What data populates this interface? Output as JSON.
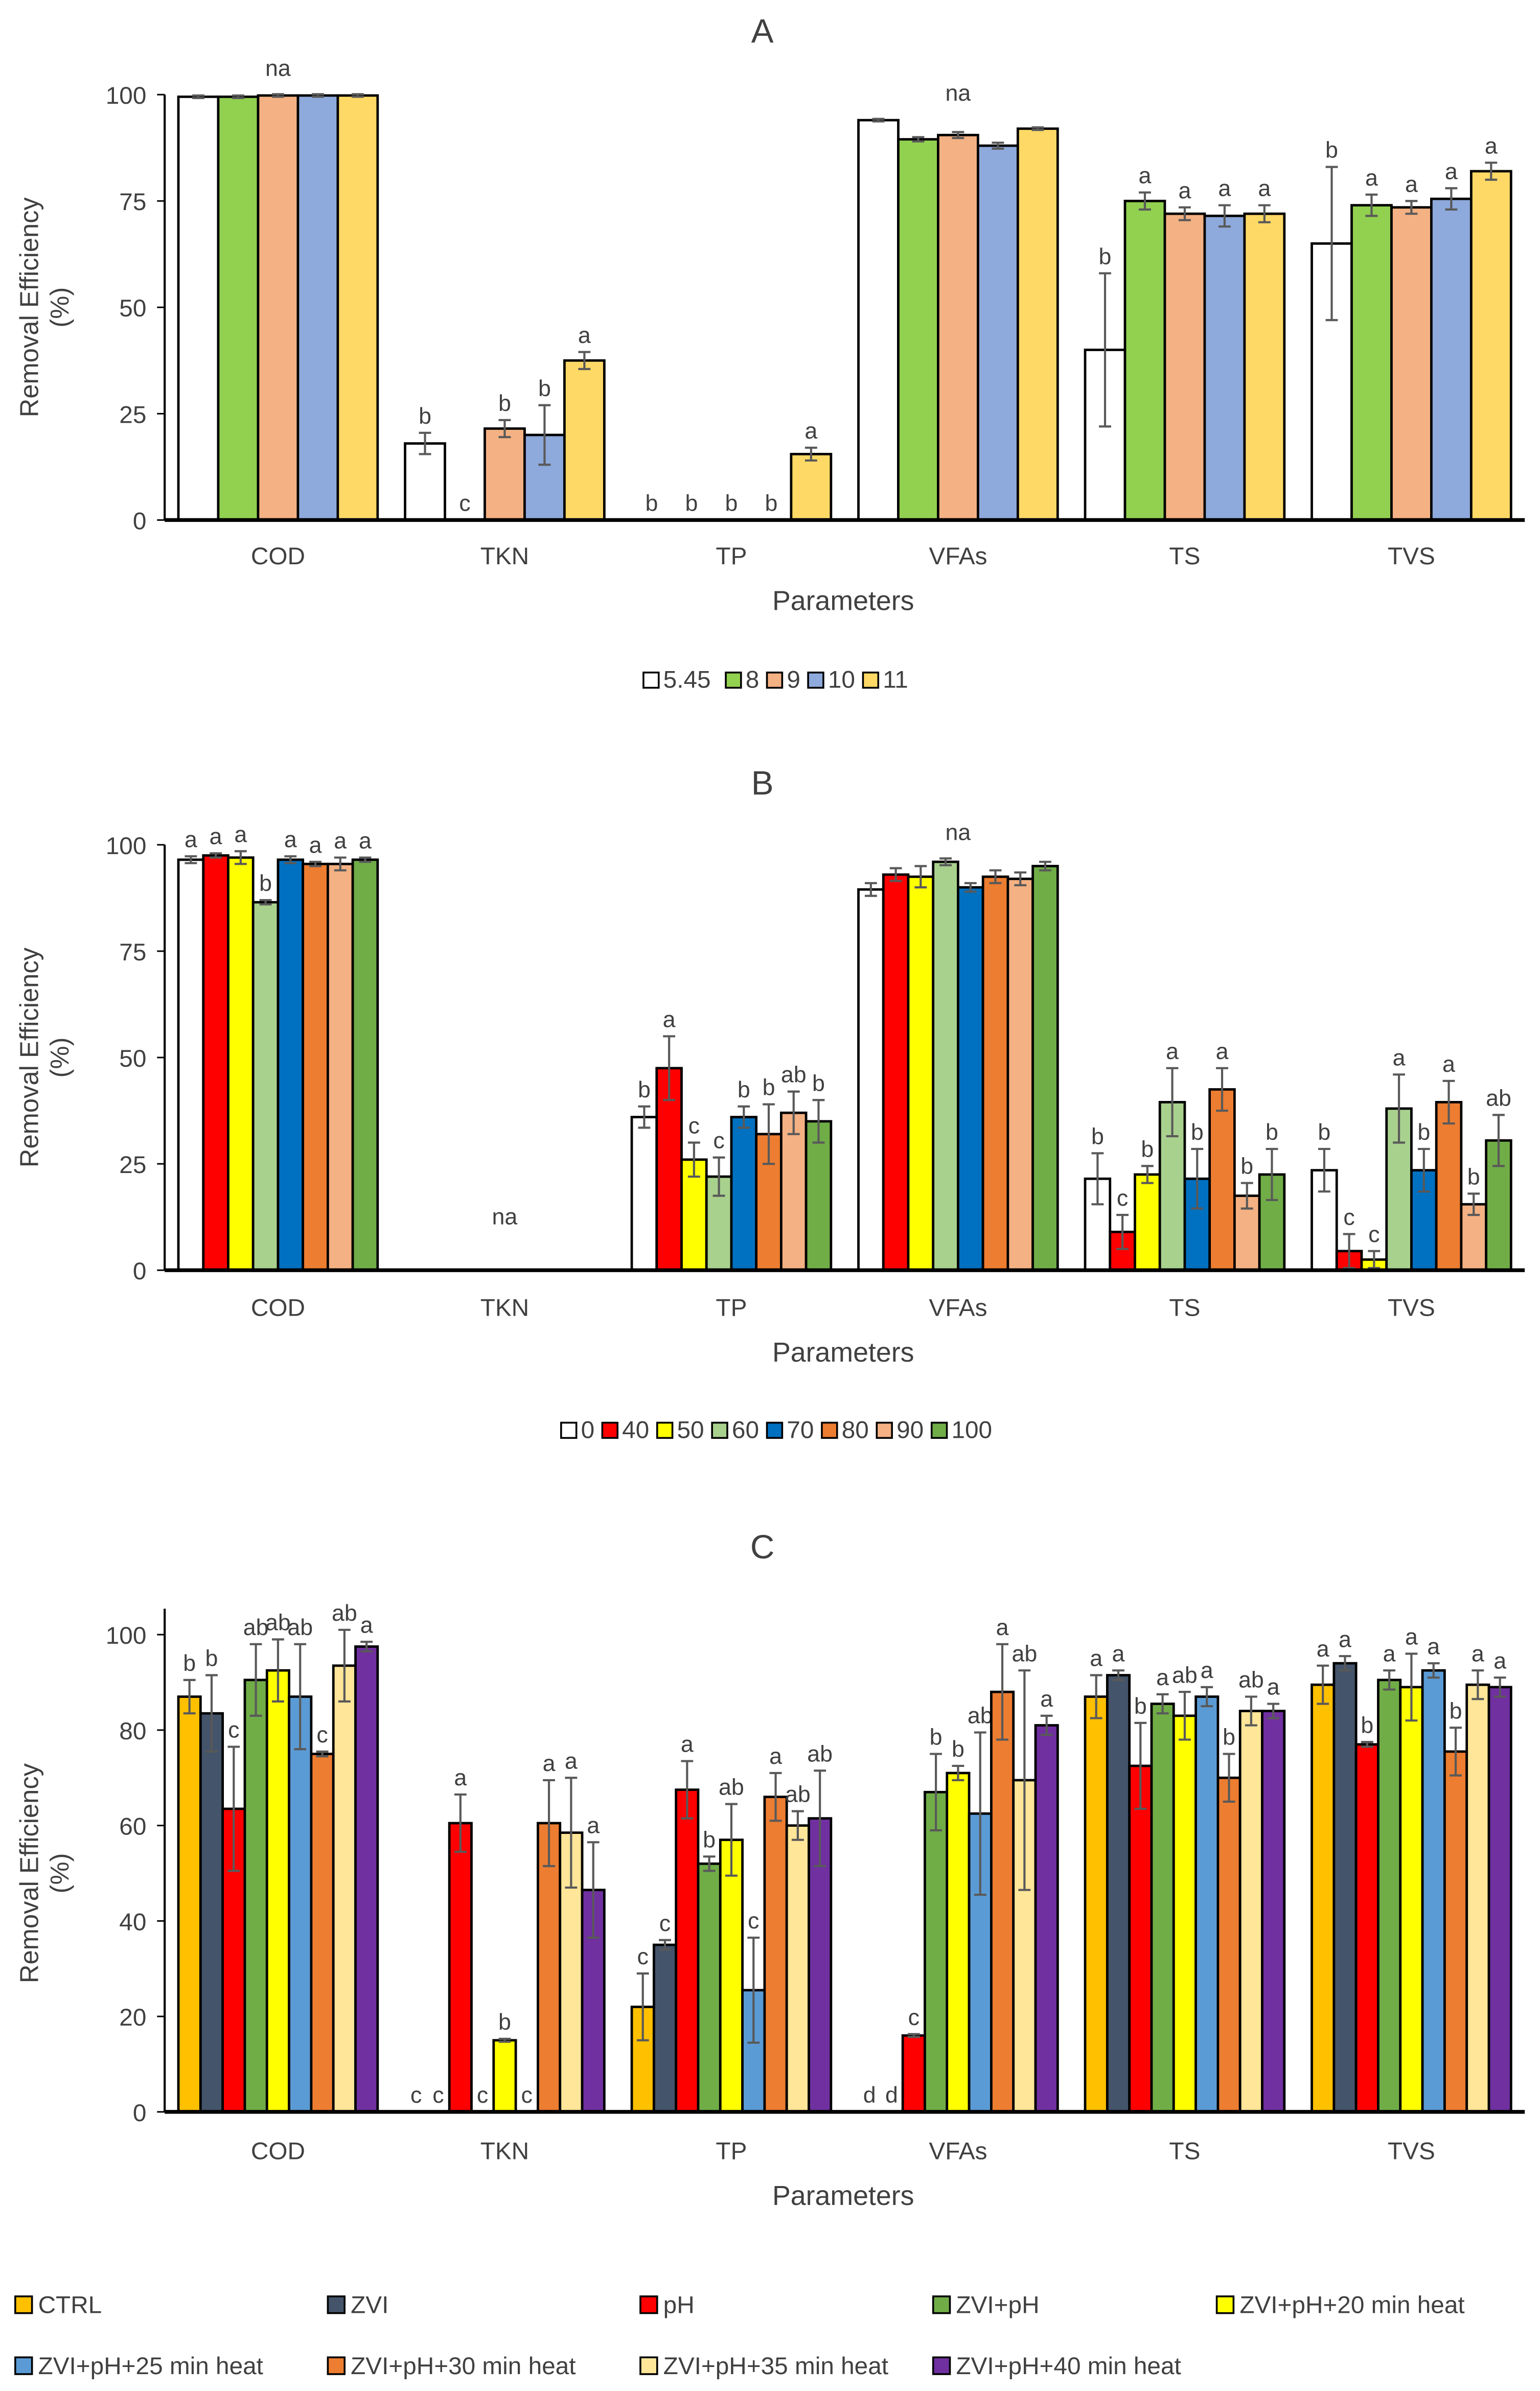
{
  "chart_data": [
    {
      "type": "bar",
      "title": "A",
      "xlabel": "Parameters",
      "ylabel": [
        "Removal Efficiency",
        "(%)"
      ],
      "ylim": [
        0,
        100
      ],
      "yticks": [
        0,
        25,
        50,
        75,
        100
      ],
      "grid": false,
      "legend_position": "bottom",
      "categories": [
        "COD",
        "TKN",
        "TP",
        "VFAs",
        "TS",
        "TVS"
      ],
      "group_labels": [
        "na",
        "",
        "",
        "na",
        "",
        ""
      ],
      "series": [
        {
          "name": "5.45",
          "color": "#FFFFFF",
          "values": [
            99.5,
            18,
            0,
            94,
            40,
            65
          ],
          "errors": [
            0.3,
            2.5,
            0,
            0.3,
            18,
            18
          ],
          "letters": [
            "",
            "b",
            "b",
            "",
            "b",
            "b"
          ]
        },
        {
          "name": "8",
          "color": "#92D050",
          "values": [
            99.5,
            0,
            0,
            89.5,
            75,
            74
          ],
          "errors": [
            0.3,
            0,
            0,
            0.5,
            2,
            2.5
          ],
          "letters": [
            "",
            "c",
            "b",
            "",
            "a",
            "a"
          ]
        },
        {
          "name": "9",
          "color": "#F4B183",
          "values": [
            99.8,
            21.5,
            0,
            90.5,
            72,
            73.5
          ],
          "errors": [
            0.3,
            2,
            0,
            0.7,
            1.5,
            1.5
          ],
          "letters": [
            "",
            "b",
            "b",
            "",
            "a",
            "a"
          ]
        },
        {
          "name": "10",
          "color": "#8EA9DB",
          "values": [
            99.8,
            20,
            0,
            88,
            71.5,
            75.5
          ],
          "errors": [
            0.3,
            7,
            0,
            0.7,
            2.5,
            2.5
          ],
          "letters": [
            "",
            "b",
            "b",
            "",
            "a",
            "a"
          ]
        },
        {
          "name": "11",
          "color": "#FFD966",
          "values": [
            99.8,
            37.5,
            15.5,
            92,
            72,
            82
          ],
          "errors": [
            0.3,
            2,
            1.5,
            0.3,
            2,
            2
          ],
          "letters": [
            "",
            "a",
            "a",
            "",
            "a",
            "a"
          ]
        }
      ]
    },
    {
      "type": "bar",
      "title": "B",
      "xlabel": "Parameters",
      "ylabel": [
        "Removal Efficiency",
        "(%)"
      ],
      "ylim": [
        0,
        100
      ],
      "yticks": [
        0,
        25,
        50,
        75,
        100
      ],
      "grid": false,
      "legend_position": "bottom",
      "categories": [
        "COD",
        "TKN",
        "TP",
        "VFAs",
        "TS",
        "TVS"
      ],
      "group_labels": [
        "",
        "na",
        "",
        "na",
        "",
        ""
      ],
      "series": [
        {
          "name": "0",
          "color": "#FFFFFF",
          "values": [
            96.5,
            0,
            36,
            89.5,
            21.5,
            23.5
          ],
          "errors": [
            0.8,
            0,
            2.5,
            1.5,
            6,
            5
          ],
          "letters": [
            "a",
            "",
            "b",
            "",
            "b",
            "b"
          ]
        },
        {
          "name": "40",
          "color": "#FF0000",
          "values": [
            97.5,
            0,
            47.5,
            93,
            9,
            4.5
          ],
          "errors": [
            0.5,
            0,
            7.5,
            1.5,
            4,
            4
          ],
          "letters": [
            "a",
            "",
            "a",
            "",
            "c",
            "c"
          ]
        },
        {
          "name": "50",
          "color": "#FFFF00",
          "values": [
            97,
            0,
            26,
            92.5,
            22.5,
            2.5
          ],
          "errors": [
            1.5,
            0,
            4,
            2.5,
            2,
            2
          ],
          "letters": [
            "a",
            "",
            "c",
            "",
            "b",
            "c"
          ]
        },
        {
          "name": "60",
          "color": "#A9D18E",
          "values": [
            86.5,
            0,
            22,
            96,
            39.5,
            38
          ],
          "errors": [
            0.5,
            0,
            4.5,
            0.8,
            8,
            8
          ],
          "letters": [
            "b",
            "",
            "c",
            "",
            "a",
            "a"
          ]
        },
        {
          "name": "70",
          "color": "#0070C0",
          "values": [
            96.5,
            0,
            36,
            90,
            21.5,
            23.5
          ],
          "errors": [
            0.8,
            0,
            2.5,
            1,
            7,
            5
          ],
          "letters": [
            "a",
            "",
            "b",
            "",
            "b",
            "b"
          ]
        },
        {
          "name": "80",
          "color": "#ED7D31",
          "values": [
            95.5,
            0,
            32,
            92.5,
            42.5,
            39.5
          ],
          "errors": [
            0.5,
            0,
            7,
            1.5,
            5,
            5
          ],
          "letters": [
            "a",
            "",
            "b",
            "",
            "a",
            "a"
          ]
        },
        {
          "name": "90",
          "color": "#F4B183",
          "values": [
            95.5,
            0,
            37,
            92,
            17.5,
            15.5
          ],
          "errors": [
            1.5,
            0,
            5,
            1.5,
            3,
            2.5
          ],
          "letters": [
            "a",
            "",
            "ab",
            "",
            "b",
            "b"
          ]
        },
        {
          "name": "100",
          "color": "#70AD47",
          "values": [
            96.5,
            0,
            35,
            95,
            22.5,
            30.5
          ],
          "errors": [
            0.5,
            0,
            5,
            1,
            6,
            6
          ],
          "letters": [
            "a",
            "",
            "b",
            "",
            "b",
            "ab"
          ]
        }
      ]
    },
    {
      "type": "bar",
      "title": "C",
      "xlabel": "Parameters",
      "ylabel": [
        "Removal Efficiency",
        "(%)"
      ],
      "ylim": [
        0,
        105
      ],
      "yticks": [
        0,
        20,
        40,
        60,
        80,
        100
      ],
      "grid": false,
      "legend_position": "bottom",
      "categories": [
        "COD",
        "TKN",
        "TP",
        "VFAs",
        "TS",
        "TVS"
      ],
      "group_labels": [
        "",
        "",
        "",
        "",
        "",
        ""
      ],
      "series": [
        {
          "name": "CTRL",
          "color": "#FFC000",
          "values": [
            87,
            0,
            22,
            0,
            87,
            89.5
          ],
          "errors": [
            3.5,
            0,
            7,
            0,
            4.5,
            4
          ],
          "letters": [
            "b",
            "c",
            "c",
            "d",
            "a",
            "a"
          ]
        },
        {
          "name": "ZVI",
          "color": "#44546A",
          "values": [
            83.5,
            0,
            35,
            0,
            91.5,
            94
          ],
          "errors": [
            8,
            0,
            1,
            0,
            1,
            1.5
          ],
          "letters": [
            "b",
            "c",
            "c",
            "d",
            "a",
            "a"
          ]
        },
        {
          "name": "pH",
          "color": "#FF0000",
          "values": [
            63.5,
            60.5,
            67.5,
            16,
            72.5,
            77
          ],
          "errors": [
            13,
            6,
            6,
            0.3,
            9,
            0.5
          ],
          "letters": [
            "c",
            "a",
            "a",
            "c",
            "b",
            "b"
          ]
        },
        {
          "name": "ZVI+pH",
          "color": "#70AD47",
          "values": [
            90.5,
            0,
            52,
            67,
            85.5,
            90.5
          ],
          "errors": [
            7.5,
            0,
            1.5,
            8,
            2,
            2
          ],
          "letters": [
            "ab",
            "c",
            "b",
            "b",
            "a",
            "a"
          ]
        },
        {
          "name": "ZVI+pH+20 min heat",
          "color": "#FFFF00",
          "values": [
            92.5,
            15,
            57,
            71,
            83,
            89
          ],
          "errors": [
            6.5,
            0.3,
            7.5,
            1.5,
            5,
            7
          ],
          "letters": [
            "ab",
            "b",
            "ab",
            "b",
            "ab",
            "a"
          ]
        },
        {
          "name": "ZVI+pH+25 min heat",
          "color": "#5B9BD5",
          "values": [
            87,
            0,
            25.5,
            62.5,
            87,
            92.5
          ],
          "errors": [
            11,
            0,
            11,
            17,
            2,
            1.5
          ],
          "letters": [
            "ab",
            "c",
            "c",
            "ab",
            "a",
            "a"
          ]
        },
        {
          "name": "ZVI+pH+30 min heat",
          "color": "#ED7D31",
          "values": [
            75,
            60.5,
            66,
            88,
            70,
            75.5
          ],
          "errors": [
            0.5,
            9,
            5,
            10,
            5,
            5
          ],
          "letters": [
            "c",
            "a",
            "a",
            "a",
            "b",
            "b"
          ]
        },
        {
          "name": "ZVI+pH+35 min heat",
          "color": "#FFE699",
          "values": [
            93.5,
            58.5,
            60,
            69.5,
            84,
            89.5
          ],
          "errors": [
            7.5,
            11.5,
            3,
            23,
            3,
            3
          ],
          "letters": [
            "ab",
            "a",
            "ab",
            "ab",
            "ab",
            "a"
          ]
        },
        {
          "name": "ZVI+pH+40 min heat",
          "color": "#7030A0",
          "values": [
            97.5,
            46.5,
            61.5,
            81,
            84,
            89
          ],
          "errors": [
            1,
            10,
            10,
            2,
            1.5,
            2
          ],
          "letters": [
            "a",
            "a",
            "ab",
            "a",
            "a",
            "a"
          ]
        }
      ]
    }
  ]
}
